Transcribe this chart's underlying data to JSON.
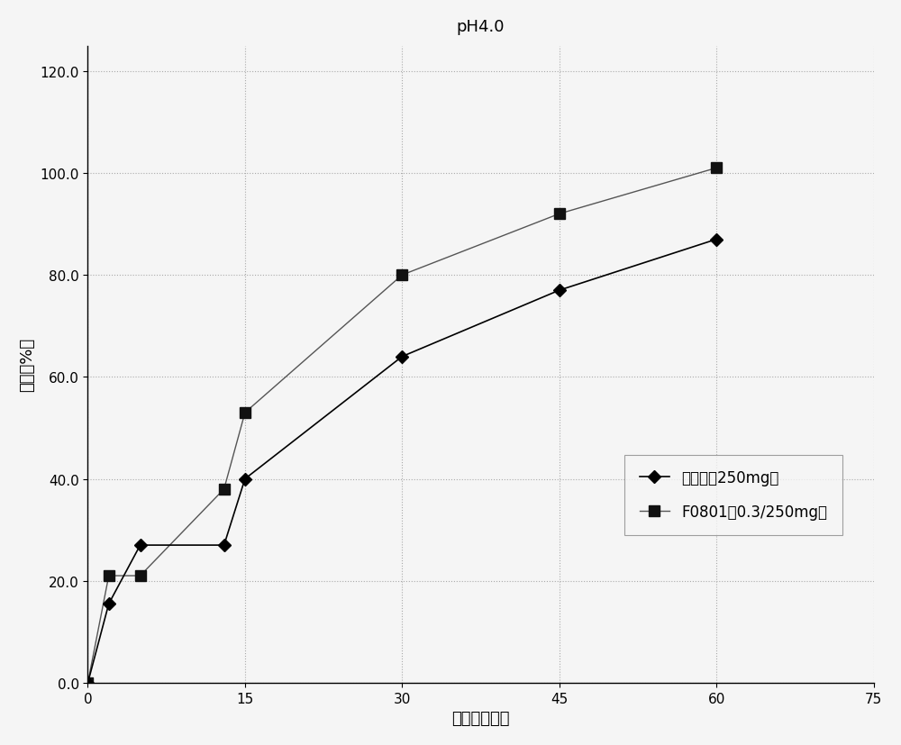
{
  "title": "pH4.0",
  "xlabel": "时间（分钟）",
  "ylabel": "溶解（%）",
  "xlim": [
    0,
    75
  ],
  "ylim": [
    0,
    125
  ],
  "yticks": [
    0.0,
    20.0,
    40.0,
    60.0,
    80.0,
    100.0,
    120.0
  ],
  "xticks": [
    0,
    15,
    30,
    45,
    60,
    75
  ],
  "series1": {
    "label": "格华止（250mg）",
    "x": [
      0,
      2,
      5,
      13,
      15,
      30,
      45,
      60
    ],
    "y": [
      0.0,
      15.5,
      27.0,
      27.0,
      40.0,
      64.0,
      77.0,
      87.0
    ],
    "color": "#000000",
    "marker": "D",
    "linewidth": 1.2,
    "markersize": 7
  },
  "series2": {
    "label": "F0801（0.3/250mg）",
    "x": [
      0,
      2,
      5,
      13,
      15,
      30,
      45,
      60
    ],
    "y": [
      0.0,
      21.0,
      21.0,
      38.0,
      53.0,
      80.0,
      92.0,
      101.0
    ],
    "color": "#555555",
    "marker": "s",
    "linewidth": 1.0,
    "markersize": 8
  },
  "grid_color": "#aaaaaa",
  "background_color": "#f5f5f5",
  "legend_fontsize": 12,
  "title_fontsize": 13,
  "axis_label_fontsize": 13,
  "tick_fontsize": 11
}
